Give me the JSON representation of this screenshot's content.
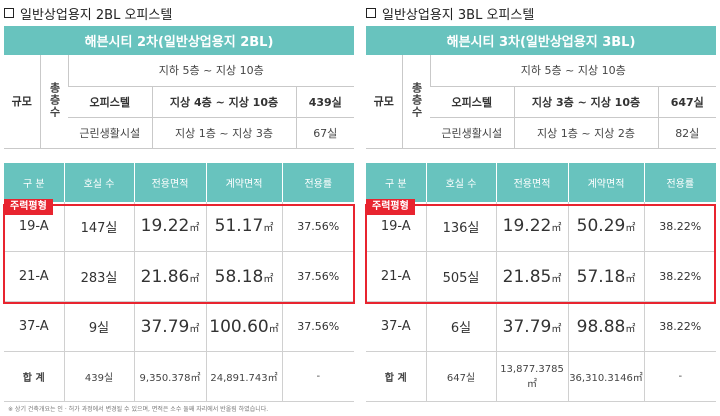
{
  "panels": [
    {
      "title": "일반상업용지 2BL 오피스텔",
      "band": "해븐시티 2차(일반상업용지 2BL)",
      "scale": {
        "label": "규모",
        "total_floors_label": "총층수",
        "overall": "지하 5층 ~ 지상 10층",
        "rows": [
          {
            "kind": "오피스텔",
            "floors": "지상 4층 ~ 지상 10층",
            "count": "439실"
          },
          {
            "kind": "근린생활시설",
            "floors": "지상 1층 ~ 지상 3층",
            "count": "67실"
          }
        ]
      },
      "headers": [
        "구 분",
        "호실 수",
        "전용면적",
        "계약면적",
        "전용률"
      ],
      "tag": "주력평형",
      "rows": [
        {
          "type": "19-A",
          "units": "147실",
          "excl": "19.22",
          "excl_unit": "㎡",
          "contract": "51.17",
          "contract_unit": "㎡",
          "ratio": "37.56%"
        },
        {
          "type": "21-A",
          "units": "283실",
          "excl": "21.86",
          "excl_unit": "㎡",
          "contract": "58.18",
          "contract_unit": "㎡",
          "ratio": "37.56%"
        },
        {
          "type": "37-A",
          "units": "9실",
          "excl": "37.79",
          "excl_unit": "㎡",
          "contract": "100.60",
          "contract_unit": "㎡",
          "ratio": "37.56%"
        }
      ],
      "total": {
        "label": "합 계",
        "units": "439실",
        "excl": "9,350.378㎡",
        "contract": "24,891.743㎡",
        "ratio": "-"
      }
    },
    {
      "title": "일반상업용지 3BL 오피스텔",
      "band": "해븐시티 3차(일반상업용지 3BL)",
      "scale": {
        "label": "규모",
        "total_floors_label": "총층수",
        "overall": "지하 5층 ~ 지상 10층",
        "rows": [
          {
            "kind": "오피스텔",
            "floors": "지상 3층 ~ 지상 10층",
            "count": "647실"
          },
          {
            "kind": "근린생활시설",
            "floors": "지상 1층 ~ 지상 2층",
            "count": "82실"
          }
        ]
      },
      "headers": [
        "구 분",
        "호실 수",
        "전용면적",
        "계약면적",
        "전용률"
      ],
      "tag": "주력평형",
      "rows": [
        {
          "type": "19-A",
          "units": "136실",
          "excl": "19.22",
          "excl_unit": "㎡",
          "contract": "50.29",
          "contract_unit": "㎡",
          "ratio": "38.22%"
        },
        {
          "type": "21-A",
          "units": "505실",
          "excl": "21.85",
          "excl_unit": "㎡",
          "contract": "57.18",
          "contract_unit": "㎡",
          "ratio": "38.22%"
        },
        {
          "type": "37-A",
          "units": "6실",
          "excl": "37.79",
          "excl_unit": "㎡",
          "contract": "98.88",
          "contract_unit": "㎡",
          "ratio": "38.22%"
        }
      ],
      "total": {
        "label": "합 계",
        "units": "647실",
        "excl": "13,877.3785㎡",
        "contract": "36,310.3146㎡",
        "ratio": "-"
      }
    }
  ],
  "footnote": "※ 상기 건축개요는 인 · 허가 과정에서 변경될 수 있으며, 면적은 소수 둘째 자리에서 반올림 하였습니다.",
  "colors": {
    "teal": "#68c3be",
    "red": "#e8242f"
  }
}
